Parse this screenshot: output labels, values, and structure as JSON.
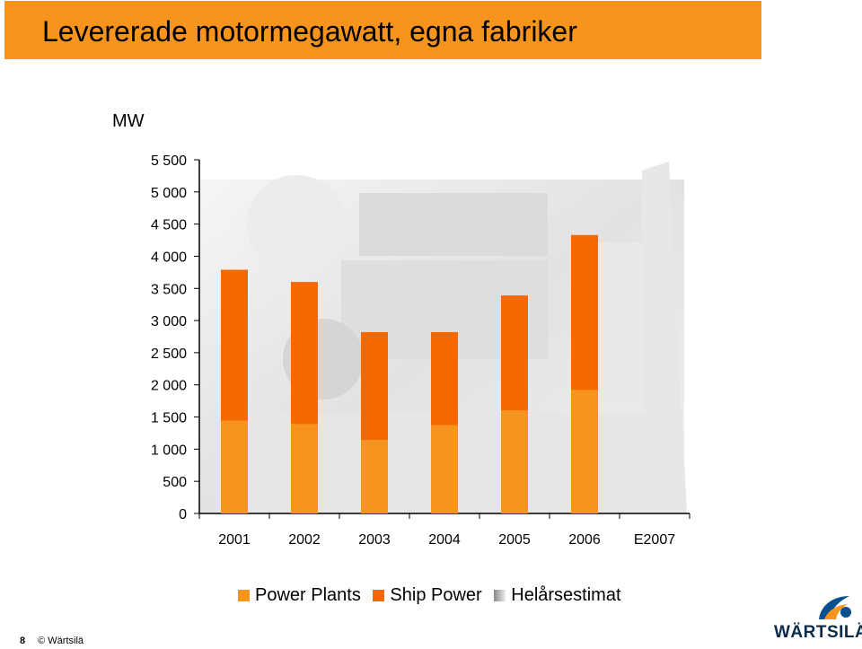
{
  "header": {
    "title": "Levererade motormegawatt, egna fabriker"
  },
  "footer": {
    "page_number": "8",
    "copyright": "© Wärtsilä"
  },
  "logo": {
    "text": "WÄRTSILÄ"
  },
  "colors": {
    "power_plants": "#f7941d",
    "ship_power": "#f56a00",
    "estimate": "#9a9a9a",
    "title_bar": "#f7941d"
  },
  "chart_data": {
    "type": "bar",
    "stacked": true,
    "ylabel": "MW",
    "ylim": [
      0,
      5500
    ],
    "yticks": [
      0,
      500,
      1000,
      1500,
      2000,
      2500,
      3000,
      3500,
      4000,
      4500,
      5000,
      5500
    ],
    "ytick_labels": [
      "0",
      "500",
      "1 000",
      "1 500",
      "2 000",
      "2 500",
      "3 000",
      "3 500",
      "4 000",
      "4 500",
      "5 000",
      "5 500"
    ],
    "categories": [
      "2001",
      "2002",
      "2003",
      "2004",
      "2005",
      "2006",
      "E2007"
    ],
    "series": [
      {
        "name": "Power Plants",
        "values": [
          1440,
          1390,
          1140,
          1370,
          1600,
          1920,
          0
        ]
      },
      {
        "name": "Ship Power",
        "values": [
          2350,
          2210,
          1680,
          1450,
          1790,
          2410,
          0
        ]
      },
      {
        "name": "Helårsestimat",
        "values": [
          0,
          0,
          0,
          0,
          0,
          0,
          0
        ]
      }
    ],
    "legend_position": "bottom",
    "grid": false
  }
}
